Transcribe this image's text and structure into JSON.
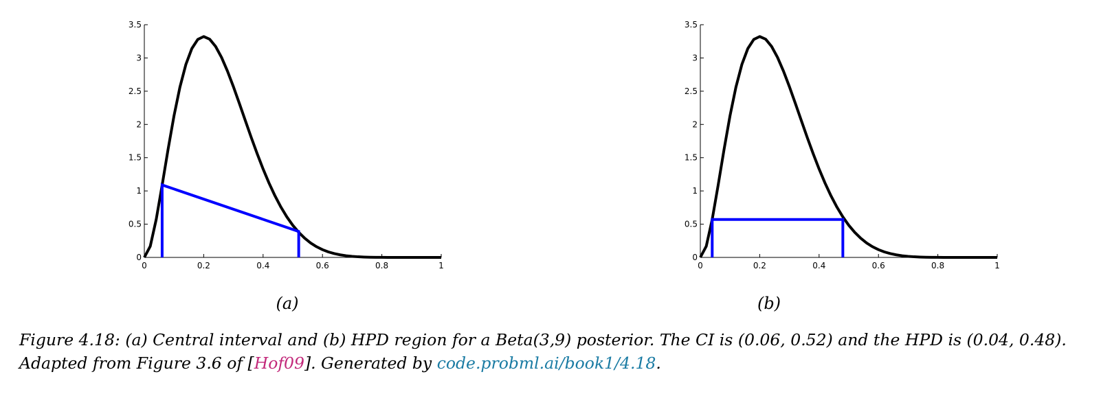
{
  "colors": {
    "curve": "#000000",
    "interval": "#0000ff",
    "cite": "#c2287a",
    "link": "#1a7ba3"
  },
  "chart_data": [
    {
      "type": "line",
      "panel_label": "(a)",
      "xlim": [
        0,
        1
      ],
      "ylim": [
        0,
        3.5
      ],
      "x_ticks": [
        "0",
        "0.2",
        "0.4",
        "0.6",
        "0.8",
        "1"
      ],
      "y_ticks": [
        "0",
        "0.5",
        "1",
        "1.5",
        "2",
        "2.5",
        "3",
        "3.5"
      ],
      "grid": false,
      "series": [
        {
          "kind": "curve",
          "distribution": "Beta(3,9) pdf"
        },
        {
          "kind": "polyline",
          "points": [
            [
              0.06,
              0
            ],
            [
              0.06,
              1.09
            ],
            [
              0.52,
              0.39
            ],
            [
              0.52,
              0
            ]
          ]
        }
      ]
    },
    {
      "type": "line",
      "panel_label": "(b)",
      "xlim": [
        0,
        1
      ],
      "ylim": [
        0,
        3.5
      ],
      "x_ticks": [
        "0",
        "0.2",
        "0.4",
        "0.6",
        "0.8",
        "1"
      ],
      "y_ticks": [
        "0",
        "0.5",
        "1",
        "1.5",
        "2",
        "2.5",
        "3",
        "3.5"
      ],
      "grid": false,
      "series": [
        {
          "kind": "curve",
          "distribution": "Beta(3,9) pdf"
        },
        {
          "kind": "polyline",
          "points": [
            [
              0.04,
              0
            ],
            [
              0.04,
              0.57
            ],
            [
              0.48,
              0.57
            ],
            [
              0.48,
              0
            ]
          ]
        }
      ]
    }
  ],
  "caption": {
    "part1": "Figure 4.18: (a) Central interval and (b) HPD region for a Beta(3,9) posterior. The CI is (0.06, 0.52) and the HPD is (0.04, 0.48). Adapted from Figure 3.6 of [",
    "cite": "Hof09",
    "part2": "]. Generated by ",
    "link": "code.probml.ai/book1/4.18",
    "part3": "."
  }
}
